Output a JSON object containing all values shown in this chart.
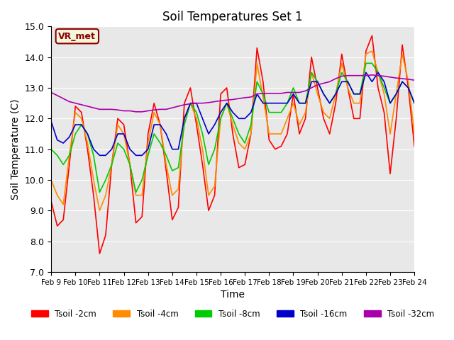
{
  "title": "Soil Temperatures Set 1",
  "xlabel": "Time",
  "ylabel": "Soil Temperature (C)",
  "ylim": [
    7.0,
    15.0
  ],
  "yticks": [
    7.0,
    8.0,
    9.0,
    10.0,
    11.0,
    12.0,
    13.0,
    14.0,
    15.0
  ],
  "colors": {
    "Tsoil -2cm": "#ff0000",
    "Tsoil -4cm": "#ff8c00",
    "Tsoil -8cm": "#00cc00",
    "Tsoil -16cm": "#0000cc",
    "Tsoil -32cm": "#aa00aa"
  },
  "bg_color": "#e8e8e8",
  "legend_label": "VR_met",
  "series": {
    "Tsoil -2cm": {
      "times_hours": [
        0,
        6,
        12,
        18,
        24,
        30,
        36,
        42,
        48,
        54,
        60,
        66,
        72,
        78,
        84,
        90,
        96,
        102,
        108,
        114,
        120,
        126,
        132,
        138,
        144,
        150,
        156,
        162,
        168,
        174,
        180,
        186,
        192,
        198,
        204,
        210,
        216,
        222,
        228,
        234,
        240,
        246,
        252,
        258,
        264,
        270,
        276,
        282,
        288,
        294,
        300,
        306,
        312,
        318,
        324,
        330,
        336,
        342,
        348,
        354,
        360
      ],
      "values": [
        9.3,
        8.5,
        8.7,
        10.5,
        12.4,
        12.2,
        11.0,
        9.5,
        7.6,
        8.2,
        10.5,
        12.0,
        11.8,
        10.5,
        8.6,
        8.8,
        11.5,
        12.5,
        11.8,
        10.3,
        8.7,
        9.1,
        12.5,
        13.0,
        11.8,
        10.5,
        9.0,
        9.5,
        12.8,
        13.0,
        11.5,
        10.4,
        10.5,
        11.5,
        14.3,
        13.2,
        11.3,
        11.0,
        11.1,
        11.5,
        12.8,
        11.5,
        12.0,
        14.0,
        13.0,
        12.0,
        11.5,
        12.5,
        14.1,
        13.0,
        12.0,
        12.0,
        14.2,
        14.7,
        13.0,
        12.2,
        10.2,
        12.0,
        14.4,
        13.0,
        11.1
      ]
    },
    "Tsoil -4cm": {
      "times_hours": [
        0,
        6,
        12,
        18,
        24,
        30,
        36,
        42,
        48,
        54,
        60,
        66,
        72,
        78,
        84,
        90,
        96,
        102,
        108,
        114,
        120,
        126,
        132,
        138,
        144,
        150,
        156,
        162,
        168,
        174,
        180,
        186,
        192,
        198,
        204,
        210,
        216,
        222,
        228,
        234,
        240,
        246,
        252,
        258,
        264,
        270,
        276,
        282,
        288,
        294,
        300,
        306,
        312,
        318,
        324,
        330,
        336,
        342,
        348,
        354,
        360
      ],
      "values": [
        10.0,
        9.5,
        9.2,
        10.8,
        12.2,
        12.0,
        11.2,
        10.0,
        9.0,
        9.5,
        10.5,
        11.8,
        11.5,
        10.5,
        9.5,
        9.5,
        11.2,
        12.2,
        11.8,
        10.5,
        9.5,
        9.7,
        12.0,
        12.5,
        12.0,
        11.0,
        9.5,
        9.8,
        12.0,
        12.5,
        11.8,
        11.2,
        11.0,
        11.5,
        13.8,
        12.7,
        11.5,
        11.5,
        11.5,
        12.0,
        12.5,
        11.8,
        12.2,
        13.5,
        12.8,
        12.2,
        12.0,
        12.8,
        13.8,
        13.0,
        12.5,
        12.5,
        14.1,
        14.2,
        13.5,
        12.8,
        11.5,
        12.8,
        14.1,
        13.2,
        11.5
      ]
    },
    "Tsoil -8cm": {
      "times_hours": [
        0,
        6,
        12,
        18,
        24,
        30,
        36,
        42,
        48,
        54,
        60,
        66,
        72,
        78,
        84,
        90,
        96,
        102,
        108,
        114,
        120,
        126,
        132,
        138,
        144,
        150,
        156,
        162,
        168,
        174,
        180,
        186,
        192,
        198,
        204,
        210,
        216,
        222,
        228,
        234,
        240,
        246,
        252,
        258,
        264,
        270,
        276,
        282,
        288,
        294,
        300,
        306,
        312,
        318,
        324,
        330,
        336,
        342,
        348,
        354,
        360
      ],
      "values": [
        11.0,
        10.8,
        10.5,
        10.8,
        11.5,
        11.8,
        11.5,
        10.8,
        9.6,
        10.0,
        10.5,
        11.2,
        11.0,
        10.5,
        9.6,
        10.0,
        10.8,
        11.5,
        11.2,
        10.8,
        10.3,
        10.4,
        11.8,
        12.5,
        12.2,
        11.5,
        10.5,
        11.0,
        12.0,
        12.5,
        12.0,
        11.5,
        11.2,
        11.8,
        13.2,
        12.8,
        12.2,
        12.2,
        12.2,
        12.5,
        13.0,
        12.5,
        12.5,
        13.5,
        13.2,
        12.8,
        12.5,
        12.8,
        13.5,
        13.2,
        12.8,
        12.8,
        13.8,
        13.8,
        13.5,
        13.0,
        12.5,
        12.8,
        13.2,
        13.0,
        12.5
      ]
    },
    "Tsoil -16cm": {
      "times_hours": [
        0,
        6,
        12,
        18,
        24,
        30,
        36,
        42,
        48,
        54,
        60,
        66,
        72,
        78,
        84,
        90,
        96,
        102,
        108,
        114,
        120,
        126,
        132,
        138,
        144,
        150,
        156,
        162,
        168,
        174,
        180,
        186,
        192,
        198,
        204,
        210,
        216,
        222,
        228,
        234,
        240,
        246,
        252,
        258,
        264,
        270,
        276,
        282,
        288,
        294,
        300,
        306,
        312,
        318,
        324,
        330,
        336,
        342,
        348,
        354,
        360
      ],
      "values": [
        11.9,
        11.3,
        11.2,
        11.4,
        11.8,
        11.8,
        11.5,
        11.0,
        10.8,
        10.8,
        11.0,
        11.5,
        11.5,
        11.0,
        10.8,
        10.8,
        11.0,
        11.8,
        11.8,
        11.5,
        11.0,
        11.0,
        12.0,
        12.5,
        12.5,
        12.0,
        11.5,
        11.8,
        12.2,
        12.5,
        12.2,
        12.0,
        12.0,
        12.2,
        12.8,
        12.5,
        12.5,
        12.5,
        12.5,
        12.5,
        12.8,
        12.5,
        12.5,
        13.2,
        13.2,
        12.8,
        12.5,
        12.8,
        13.2,
        13.2,
        12.8,
        12.8,
        13.5,
        13.2,
        13.5,
        13.2,
        12.5,
        12.8,
        13.2,
        13.0,
        12.5
      ]
    },
    "Tsoil -32cm": {
      "times_hours": [
        0,
        6,
        12,
        18,
        24,
        30,
        36,
        42,
        48,
        54,
        60,
        66,
        72,
        78,
        84,
        90,
        96,
        102,
        108,
        114,
        120,
        126,
        132,
        138,
        144,
        150,
        156,
        162,
        168,
        174,
        180,
        186,
        192,
        198,
        204,
        210,
        216,
        222,
        228,
        234,
        240,
        246,
        252,
        258,
        264,
        270,
        276,
        282,
        288,
        294,
        300,
        306,
        312,
        318,
        324,
        330,
        336,
        342,
        348,
        354,
        360
      ],
      "values": [
        12.85,
        12.75,
        12.65,
        12.55,
        12.5,
        12.45,
        12.4,
        12.35,
        12.3,
        12.3,
        12.3,
        12.28,
        12.25,
        12.25,
        12.22,
        12.22,
        12.25,
        12.28,
        12.3,
        12.3,
        12.35,
        12.4,
        12.45,
        12.48,
        12.5,
        12.5,
        12.52,
        12.55,
        12.58,
        12.6,
        12.62,
        12.65,
        12.68,
        12.7,
        12.8,
        12.82,
        12.82,
        12.82,
        12.82,
        12.85,
        12.85,
        12.85,
        12.9,
        13.0,
        13.1,
        13.15,
        13.2,
        13.3,
        13.38,
        13.4,
        13.4,
        13.4,
        13.4,
        13.42,
        13.4,
        13.38,
        13.35,
        13.32,
        13.3,
        13.28,
        13.25
      ]
    }
  }
}
